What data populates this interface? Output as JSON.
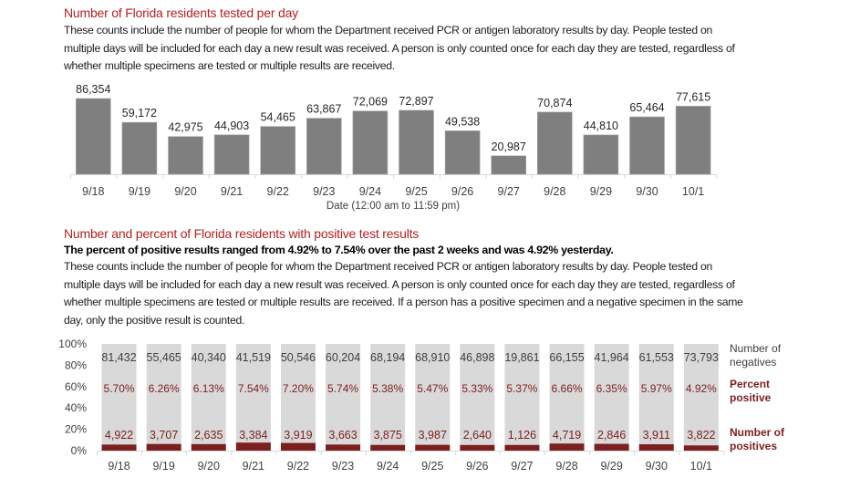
{
  "section1": {
    "title": "Number of Florida residents tested per day",
    "description": "These counts include the number of people for whom the Department received PCR or antigen laboratory results by day. People tested on multiple days will be included for each day a new result was received. A person is only counted once for each day they are tested, regardless of whether multiple specimens are tested or multiple results are received."
  },
  "section2": {
    "title": "Number and percent of Florida residents with positive test results",
    "summary": "The percent of positive results ranged from 4.92% to 7.54% over the past 2 weeks and was 4.92% yesterday.",
    "description": "These counts include the number of people for whom the Department received PCR or antigen laboratory results by day. People tested on multiple days will be included for each day a new result was received. A person is only counted once for each day they are tested, regardless of whether multiple specimens are tested or multiple results are received. If a person has a positive specimen and a negative specimen in the same day, only the positive result is counted."
  },
  "chart_data": [
    {
      "type": "bar",
      "title": "Number of Florida residents tested per day",
      "xlabel": "Date (12:00 am to 11:59 pm)",
      "ylabel": "",
      "categories": [
        "9/18",
        "9/19",
        "9/20",
        "9/21",
        "9/22",
        "9/23",
        "9/24",
        "9/25",
        "9/26",
        "9/27",
        "9/28",
        "9/29",
        "9/30",
        "10/1"
      ],
      "values": [
        86354,
        59172,
        42975,
        44903,
        54465,
        63867,
        72069,
        72897,
        49538,
        20987,
        70874,
        44810,
        65464,
        77615
      ],
      "labels": [
        "86,354",
        "59,172",
        "42,975",
        "44,903",
        "54,465",
        "63,867",
        "72,069",
        "72,897",
        "49,538",
        "20,987",
        "70,874",
        "44,810",
        "65,464",
        "77,615"
      ],
      "ylim": [
        0,
        86354
      ],
      "grid": false,
      "colors": {
        "bar": "#7f7f7f",
        "axis": "#d9d9d9"
      }
    },
    {
      "type": "bar",
      "stacked": true,
      "percent_stacked": true,
      "title": "Number and percent of Florida residents with positive test results",
      "categories": [
        "9/18",
        "9/19",
        "9/20",
        "9/21",
        "9/22",
        "9/23",
        "9/24",
        "9/25",
        "9/26",
        "9/27",
        "9/28",
        "9/29",
        "9/30",
        "10/1"
      ],
      "yticks": [
        "0%",
        "20%",
        "40%",
        "60%",
        "80%",
        "100%"
      ],
      "ylim": [
        0,
        100
      ],
      "series": [
        {
          "name": "Number of negatives",
          "values": [
            81432,
            55465,
            40340,
            41519,
            50546,
            60204,
            68194,
            68910,
            46898,
            19861,
            66155,
            41964,
            61553,
            73793
          ],
          "labels": [
            "81,432",
            "55,465",
            "40,340",
            "41,519",
            "50,546",
            "60,204",
            "68,194",
            "68,910",
            "46,898",
            "19,861",
            "66,155",
            "41,964",
            "61,553",
            "73,793"
          ],
          "color": "#d9d9d9",
          "label_color": "#404040"
        },
        {
          "name": "Percent positive",
          "values": [
            5.7,
            6.26,
            6.13,
            7.54,
            7.2,
            5.74,
            5.38,
            5.47,
            5.33,
            5.37,
            6.66,
            6.35,
            5.97,
            4.92
          ],
          "labels": [
            "5.70%",
            "6.26%",
            "6.13%",
            "7.54%",
            "7.20%",
            "5.74%",
            "5.38%",
            "5.47%",
            "5.33%",
            "5.37%",
            "6.66%",
            "6.35%",
            "5.97%",
            "4.92%"
          ],
          "label_color": "#7b1f1f"
        },
        {
          "name": "Number of positives",
          "values": [
            4922,
            3707,
            2635,
            3384,
            3919,
            3663,
            3875,
            3987,
            2640,
            1126,
            4719,
            2846,
            3911,
            3822
          ],
          "labels": [
            "4,922",
            "3,707",
            "2,635",
            "3,384",
            "3,919",
            "3,663",
            "3,875",
            "3,987",
            "2,640",
            "1,126",
            "4,719",
            "2,846",
            "3,911",
            "3,822"
          ],
          "color": "#7b1f1f",
          "label_color": "#7b1f1f"
        }
      ],
      "legend": {
        "placement": "right",
        "entries": [
          {
            "line1": "Number of",
            "line2": "negatives",
            "color": "#404040"
          },
          {
            "line1": "Percent",
            "line2": "positive",
            "color": "#7b1f1f"
          },
          {
            "line1": "Number of",
            "line2": "positives",
            "color": "#7b1f1f"
          }
        ]
      },
      "grid": false
    }
  ]
}
